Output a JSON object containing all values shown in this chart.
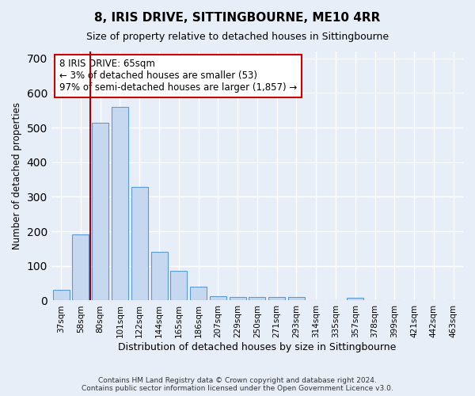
{
  "title": "8, IRIS DRIVE, SITTINGBOURNE, ME10 4RR",
  "subtitle": "Size of property relative to detached houses in Sittingbourne",
  "xlabel": "Distribution of detached houses by size in Sittingbourne",
  "ylabel": "Number of detached properties",
  "footer_line1": "Contains HM Land Registry data © Crown copyright and database right 2024.",
  "footer_line2": "Contains public sector information licensed under the Open Government Licence v3.0.",
  "categories": [
    "37sqm",
    "58sqm",
    "80sqm",
    "101sqm",
    "122sqm",
    "144sqm",
    "165sqm",
    "186sqm",
    "207sqm",
    "229sqm",
    "250sqm",
    "271sqm",
    "293sqm",
    "314sqm",
    "335sqm",
    "357sqm",
    "378sqm",
    "399sqm",
    "421sqm",
    "442sqm",
    "463sqm"
  ],
  "values": [
    30,
    190,
    515,
    560,
    328,
    140,
    85,
    40,
    12,
    10,
    10,
    10,
    10,
    0,
    0,
    7,
    0,
    0,
    0,
    0,
    0
  ],
  "bar_color": "#c5d8f0",
  "bar_edge_color": "#5b9bd5",
  "background_color": "#e8eef8",
  "grid_color": "#ffffff",
  "vline_x": 1.5,
  "vline_color": "#aa0000",
  "annotation_line1": "8 IRIS DRIVE: 65sqm",
  "annotation_line2": "← 3% of detached houses are smaller (53)",
  "annotation_line3": "97% of semi-detached houses are larger (1,857) →",
  "annotation_box_facecolor": "#ffffff",
  "annotation_box_edgecolor": "#cc0000",
  "ylim": [
    0,
    720
  ],
  "yticks": [
    0,
    100,
    200,
    300,
    400,
    500,
    600,
    700
  ]
}
